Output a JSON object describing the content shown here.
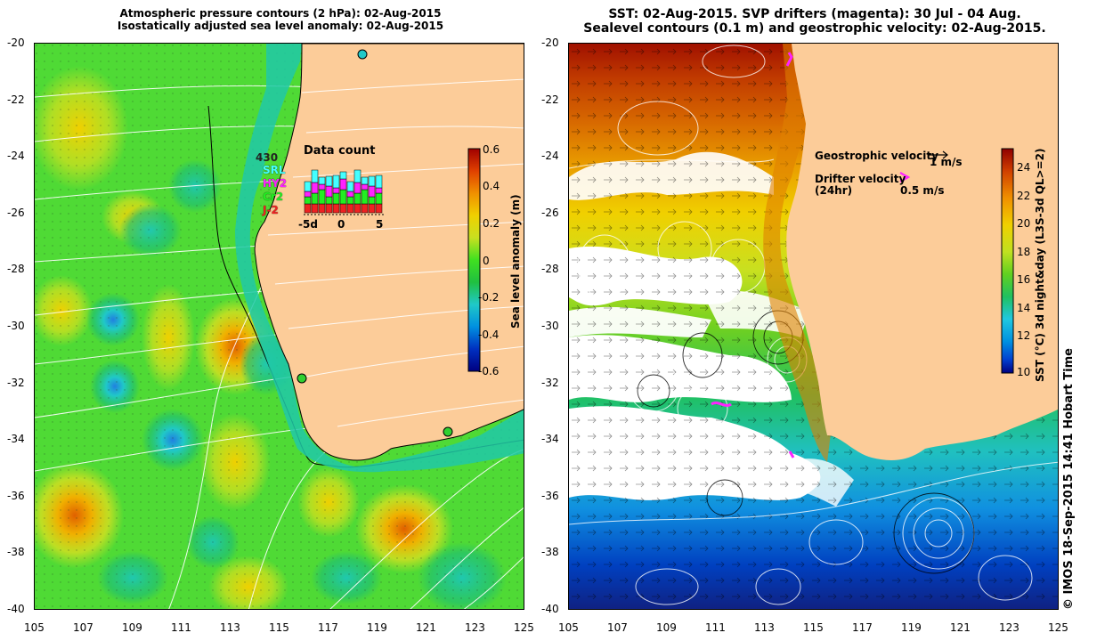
{
  "left_panel": {
    "title_line1": "Atmospheric pressure contours (2 hPa): 02-Aug-2015",
    "title_line2": "Isostatically adjusted sea level anomaly: 02-Aug-2015",
    "x_ticks": [
      "105",
      "107",
      "109",
      "111",
      "113",
      "115",
      "117",
      "119",
      "121",
      "123",
      "125"
    ],
    "y_ticks": [
      "-20",
      "-22",
      "-24",
      "-26",
      "-28",
      "-30",
      "-32",
      "-34",
      "-36",
      "-38",
      "-40"
    ],
    "colorbar_label": "Sea level anomaly (m)",
    "colorbar_ticks": [
      "0.6",
      "0.4",
      "0.2",
      "0",
      "-0.2",
      "-0.4",
      "-0.6"
    ],
    "data_count": {
      "title": "Data count",
      "total": "430",
      "satellites": [
        {
          "name": "SRL",
          "color": "#44ffff"
        },
        {
          "name": "HY2",
          "color": "#ff22ff"
        },
        {
          "name": "Cr2",
          "color": "#22ee22"
        },
        {
          "name": "J-2",
          "color": "#ee2222"
        }
      ],
      "axis_ticks": [
        "-5d",
        "0",
        "5"
      ]
    }
  },
  "right_panel": {
    "title_line1": "SST: 02-Aug-2015. SVP drifters (magenta): 30 Jul - 04 Aug.",
    "title_line2": "Sealevel contours (0.1 m) and geostrophic velocity: 02-Aug-2015.",
    "x_ticks": [
      "105",
      "107",
      "109",
      "111",
      "113",
      "115",
      "117",
      "119",
      "121",
      "123",
      "125"
    ],
    "y_ticks": [
      "-20",
      "-22",
      "-24",
      "-26",
      "-28",
      "-30",
      "-32",
      "-34",
      "-36",
      "-38",
      "-40"
    ],
    "colorbar_label": "SST (°C) 3d night&day (L3S-3d QL>=2)",
    "colorbar_ticks": [
      "24",
      "22",
      "20",
      "18",
      "16",
      "14",
      "12",
      "10"
    ],
    "geostrophic_label": "Geostrophic velocity",
    "geostrophic_scale": "1 m/s",
    "drifter_label_line1": "Drifter velocity",
    "drifter_label_line2": "(24hr)",
    "drifter_scale": "0.5 m/s"
  },
  "credit": "© IMOS 18-Sep-2015 14:41 Hobart Time",
  "colors": {
    "land": "#fccc99",
    "sla_scale": [
      "#000080",
      "#0030c0",
      "#0090e0",
      "#20c8c8",
      "#20c040",
      "#40e020",
      "#c8e020",
      "#f0d000",
      "#f09000",
      "#e04000",
      "#a00000"
    ],
    "sst_scale": [
      "#000080",
      "#0040d0",
      "#0090e0",
      "#20c8e0",
      "#20c060",
      "#60d020",
      "#c0e020",
      "#f0d000",
      "#f09000",
      "#d04000",
      "#900000"
    ]
  }
}
